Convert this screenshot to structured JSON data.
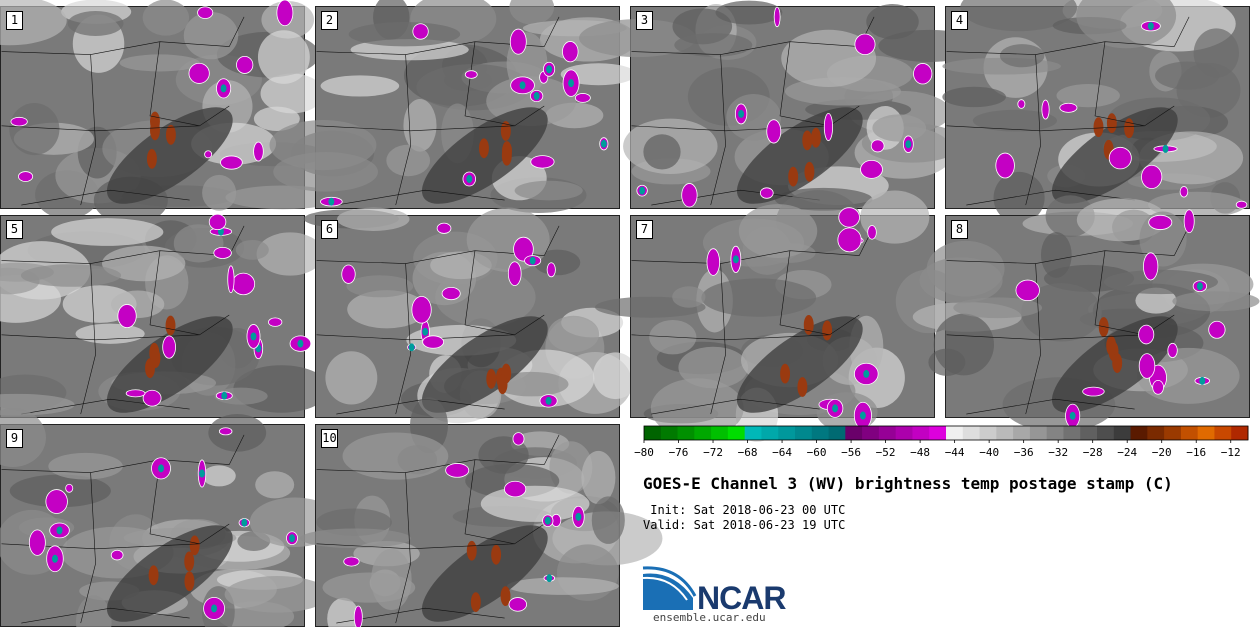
{
  "chart_data": {
    "type": "heatmap",
    "title": "GOES-E Channel 3 (WV) brightness temp postage stamp (C)",
    "init_label": "Init:",
    "init_value": "Sat 2018-06-23 00 UTC",
    "valid_label": "Valid:",
    "valid_value": "Sat 2018-06-23 19 UTC",
    "units": "C",
    "panels": [
      "1",
      "2",
      "3",
      "4",
      "5",
      "6",
      "7",
      "8",
      "9",
      "10"
    ],
    "colorbar": {
      "min": -80,
      "max": -10,
      "step": 2,
      "ticks": [
        -80,
        -76,
        -72,
        -68,
        -64,
        -60,
        -56,
        -52,
        -48,
        -44,
        -40,
        -36,
        -32,
        -28,
        -24,
        -20,
        -16,
        -12
      ],
      "tick_labels": [
        "−80",
        "−76",
        "−72",
        "−68",
        "−64",
        "−60",
        "−56",
        "−52",
        "−48",
        "−44",
        "−40",
        "−36",
        "−32",
        "−28",
        "−24",
        "−20",
        "−16",
        "−12"
      ],
      "colors": [
        "#006400",
        "#007a00",
        "#009000",
        "#00a800",
        "#00c000",
        "#00dd00",
        "#00b8b8",
        "#00a8aa",
        "#00989c",
        "#00888e",
        "#007880",
        "#006a72",
        "#6a006a",
        "#800080",
        "#960096",
        "#ac00ac",
        "#c200c2",
        "#dd00dd",
        "#f0f0f0",
        "#dedede",
        "#cccccc",
        "#bababa",
        "#a8a8a8",
        "#969696",
        "#848484",
        "#727272",
        "#606060",
        "#4e4e4e",
        "#3c3c3c",
        "#5a1a00",
        "#7a2a00",
        "#9a3a00",
        "#c25000",
        "#e06a00",
        "#c84800",
        "#b02800"
      ]
    }
  },
  "logo": {
    "text": "NCAR",
    "url": "ensemble.ucar.edu"
  }
}
